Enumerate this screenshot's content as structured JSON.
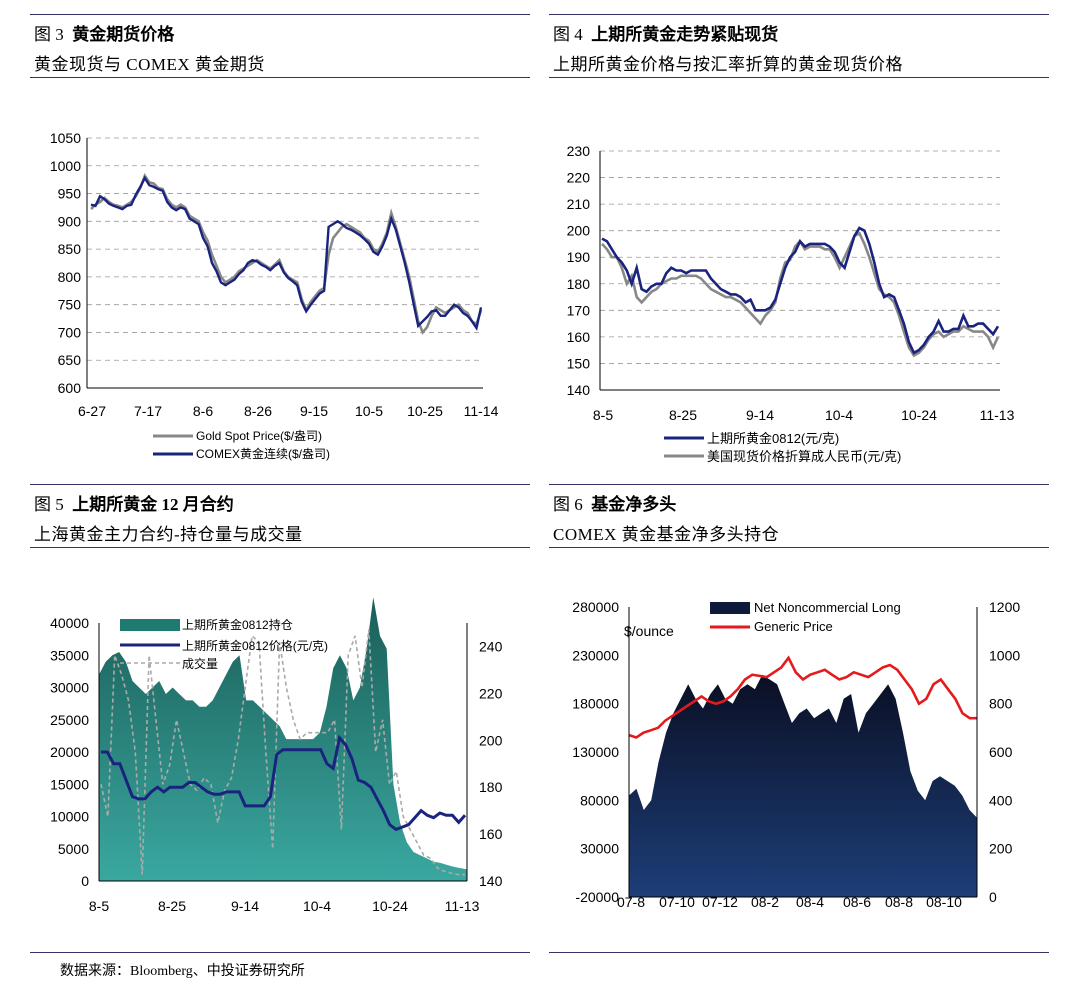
{
  "panels": [
    {
      "fig": "图 3",
      "title": "黄金期货价格",
      "subtitle": "黄金现货与 COMEX 黄金期货"
    },
    {
      "fig": "图 4",
      "title": "上期所黄金走势紧贴现货",
      "subtitle": "上期所黄金价格与按汇率折算的黄金现货价格"
    },
    {
      "fig": "图 5",
      "title": "上期所黄金 12 月合约",
      "subtitle": "上海黄金主力合约-持仓量与成交量"
    },
    {
      "fig": "图 6",
      "title": "基金净多头",
      "subtitle": "COMEX 黄金基金净多头持仓"
    }
  ],
  "footer": "数据来源：Bloomberg、中投证券研究所",
  "chart_data": [
    {
      "type": "line",
      "ylim": [
        600,
        1050
      ],
      "yticks": [
        600,
        650,
        700,
        750,
        800,
        850,
        900,
        950,
        1000,
        1050
      ],
      "xticks": [
        "6-27",
        "7-17",
        "8-6",
        "8-26",
        "9-15",
        "10-5",
        "10-25",
        "11-14"
      ],
      "grid": "horizontal-dashed",
      "legend_position": "bottom",
      "series": [
        {
          "name": "Gold Spot Price($/盎司)",
          "color": "#888888",
          "values": [
            922,
            930,
            935,
            942,
            935,
            930,
            928,
            925,
            930,
            935,
            945,
            960,
            982,
            970,
            968,
            960,
            958,
            940,
            930,
            925,
            930,
            925,
            910,
            905,
            900,
            880,
            865,
            840,
            820,
            800,
            790,
            795,
            800,
            810,
            815,
            820,
            825,
            830,
            825,
            820,
            815,
            822,
            830,
            810,
            800,
            795,
            790,
            760,
            740,
            755,
            765,
            775,
            780,
            840,
            870,
            880,
            890,
            895,
            890,
            885,
            880,
            870,
            865,
            850,
            845,
            860,
            880,
            915,
            890,
            860,
            830,
            800,
            760,
            720,
            700,
            710,
            730,
            745,
            740,
            735,
            740,
            745,
            750,
            740,
            735,
            720,
            715,
            740
          ]
        },
        {
          "name": "COMEX黄金连续($/盎司)",
          "color": "#1a237e",
          "values": [
            930,
            928,
            945,
            940,
            932,
            928,
            925,
            922,
            928,
            930,
            948,
            962,
            978,
            965,
            962,
            958,
            955,
            935,
            925,
            920,
            925,
            922,
            905,
            900,
            895,
            870,
            855,
            825,
            810,
            790,
            785,
            790,
            795,
            805,
            812,
            825,
            830,
            828,
            822,
            818,
            812,
            820,
            825,
            808,
            798,
            792,
            785,
            755,
            738,
            750,
            760,
            770,
            775,
            890,
            895,
            900,
            895,
            888,
            885,
            880,
            875,
            868,
            860,
            845,
            840,
            855,
            875,
            905,
            885,
            855,
            825,
            790,
            750,
            712,
            720,
            728,
            738,
            740,
            730,
            730,
            740,
            750,
            745,
            735,
            730,
            720,
            708,
            745
          ]
        }
      ]
    },
    {
      "type": "line",
      "ylim": [
        140,
        230
      ],
      "yticks": [
        140,
        150,
        160,
        170,
        180,
        190,
        200,
        210,
        220,
        230
      ],
      "xticks": [
        "8-5",
        "8-25",
        "9-14",
        "10-4",
        "10-24",
        "11-13"
      ],
      "grid": "horizontal-dashed",
      "legend_position": "bottom",
      "series": [
        {
          "name": "上期所黄金0812(元/克)",
          "color": "#1a237e",
          "values": [
            197,
            196,
            193,
            190,
            188,
            185,
            180,
            186,
            178,
            177,
            179,
            180,
            180,
            184,
            186,
            185,
            185,
            184,
            185,
            185,
            185,
            185,
            182,
            180,
            178,
            177,
            176,
            176,
            175,
            173,
            174,
            170,
            170,
            170,
            171,
            174,
            180,
            186,
            190,
            192,
            196,
            194,
            195,
            195,
            195,
            195,
            194,
            192,
            188,
            186,
            192,
            198,
            201,
            200,
            195,
            188,
            180,
            175,
            176,
            175,
            170,
            165,
            158,
            154,
            155,
            157,
            160,
            162,
            166,
            162,
            162,
            163,
            163,
            168,
            164,
            164,
            165,
            165,
            163,
            161,
            164
          ]
        },
        {
          "name": "美国现货价格折算成人民币(元/克)",
          "color": "#888888",
          "values": [
            195,
            193,
            190,
            190,
            186,
            180,
            183,
            175,
            173,
            175,
            177,
            178,
            180,
            181,
            182,
            182,
            183,
            183,
            183,
            183,
            182,
            180,
            178,
            177,
            176,
            175,
            175,
            174,
            173,
            171,
            169,
            167,
            165,
            168,
            170,
            173,
            182,
            188,
            189,
            194,
            196,
            193,
            194,
            194,
            194,
            193,
            193,
            190,
            186,
            190,
            194,
            198,
            199,
            195,
            190,
            184,
            178,
            176,
            175,
            173,
            168,
            162,
            156,
            153,
            154,
            156,
            159,
            161,
            162,
            160,
            161,
            162,
            162,
            164,
            163,
            162,
            162,
            162,
            160,
            156,
            160
          ]
        }
      ]
    },
    {
      "type": "area+line",
      "ylim_left": [
        0,
        40000
      ],
      "yticks_left": [
        0,
        5000,
        10000,
        15000,
        20000,
        25000,
        30000,
        35000,
        40000
      ],
      "ylim_right": [
        140,
        250
      ],
      "yticks_right": [
        140,
        160,
        180,
        200,
        220,
        240
      ],
      "xticks": [
        "8-5",
        "8-25",
        "9-14",
        "10-4",
        "10-24",
        "11-13"
      ],
      "legend_position": "top-left",
      "series": [
        {
          "name": "上期所黄金0812持仓",
          "kind": "area",
          "axis": "left",
          "color": "#1f7a72",
          "values": [
            32000,
            34000,
            35000,
            35500,
            34000,
            31000,
            30000,
            29000,
            30000,
            31000,
            29000,
            30000,
            29000,
            28000,
            28000,
            27000,
            27000,
            28000,
            30000,
            32000,
            34000,
            35000,
            28000,
            28000,
            27000,
            26000,
            25000,
            24000,
            22000,
            22000,
            22000,
            22000,
            22000,
            23000,
            27000,
            33000,
            35000,
            33000,
            28000,
            30000,
            36000,
            44000,
            38000,
            36000,
            15000,
            9000,
            6000,
            4500,
            4000,
            3500,
            3000,
            2800,
            2500,
            2200,
            2000,
            1800
          ]
        },
        {
          "name": "上期所黄金0812价格(元/克)",
          "kind": "line",
          "axis": "right",
          "color": "#1a237e",
          "values": [
            195,
            195,
            190,
            190,
            183,
            176,
            175,
            175,
            178,
            180,
            178,
            180,
            180,
            180,
            182,
            182,
            180,
            178,
            177,
            177,
            178,
            178,
            178,
            172,
            172,
            172,
            172,
            176,
            194,
            196,
            196,
            196,
            196,
            196,
            196,
            196,
            190,
            188,
            201,
            198,
            192,
            183,
            182,
            180,
            175,
            170,
            164,
            162,
            163,
            164,
            167,
            170,
            168,
            167,
            169,
            168,
            168,
            165,
            168
          ]
        },
        {
          "name": "成交量",
          "kind": "dashed",
          "axis": "left",
          "color": "#aaaaaa",
          "values": [
            15000,
            10000,
            35000,
            32000,
            28000,
            20000,
            1000,
            35000,
            25000,
            15000,
            18000,
            25000,
            20000,
            15000,
            14000,
            16000,
            15000,
            9000,
            14000,
            16000,
            22000,
            30000,
            38000,
            37000,
            20000,
            5000,
            37000,
            30000,
            25000,
            22000,
            23000,
            23000,
            23000,
            23000,
            25000,
            8000,
            35000,
            38000,
            30000,
            39000,
            20000,
            25000,
            15000,
            17000,
            10000,
            8000,
            6000,
            4000,
            3500,
            2000,
            1500,
            1200,
            1000,
            1000
          ]
        }
      ]
    },
    {
      "type": "area+line",
      "ylim_left": [
        -20000,
        280000
      ],
      "yticks_left": [
        -20000,
        30000,
        80000,
        130000,
        180000,
        230000,
        280000
      ],
      "ylim_right": [
        0,
        1200
      ],
      "yticks_right": [
        0,
        200,
        400,
        600,
        800,
        1000,
        1200
      ],
      "right_axis_unit": "$/ounce",
      "xticks": [
        "07-8",
        "07-10",
        "07-12",
        "08-2",
        "08-4",
        "08-6",
        "08-8",
        "08-10"
      ],
      "legend_position": "top",
      "series": [
        {
          "name": "Net Noncommercial Long",
          "kind": "area",
          "axis": "left",
          "color": "#0d1a3a",
          "values": [
            85000,
            92000,
            70000,
            80000,
            120000,
            150000,
            170000,
            185000,
            200000,
            185000,
            175000,
            190000,
            200000,
            185000,
            180000,
            195000,
            200000,
            195000,
            210000,
            205000,
            200000,
            180000,
            160000,
            170000,
            175000,
            165000,
            170000,
            175000,
            160000,
            185000,
            190000,
            150000,
            170000,
            180000,
            190000,
            200000,
            185000,
            150000,
            110000,
            90000,
            80000,
            100000,
            105000,
            100000,
            95000,
            85000,
            70000,
            62000
          ]
        },
        {
          "name": "Generic Price",
          "kind": "line",
          "axis": "right",
          "color": "#e41a1c",
          "values": [
            670,
            660,
            680,
            690,
            700,
            730,
            750,
            770,
            790,
            810,
            830,
            810,
            800,
            810,
            830,
            860,
            900,
            920,
            915,
            910,
            930,
            950,
            990,
            930,
            900,
            920,
            930,
            940,
            920,
            900,
            910,
            930,
            920,
            910,
            930,
            950,
            960,
            940,
            900,
            860,
            800,
            820,
            880,
            900,
            860,
            820,
            760,
            740,
            740
          ]
        }
      ]
    }
  ]
}
